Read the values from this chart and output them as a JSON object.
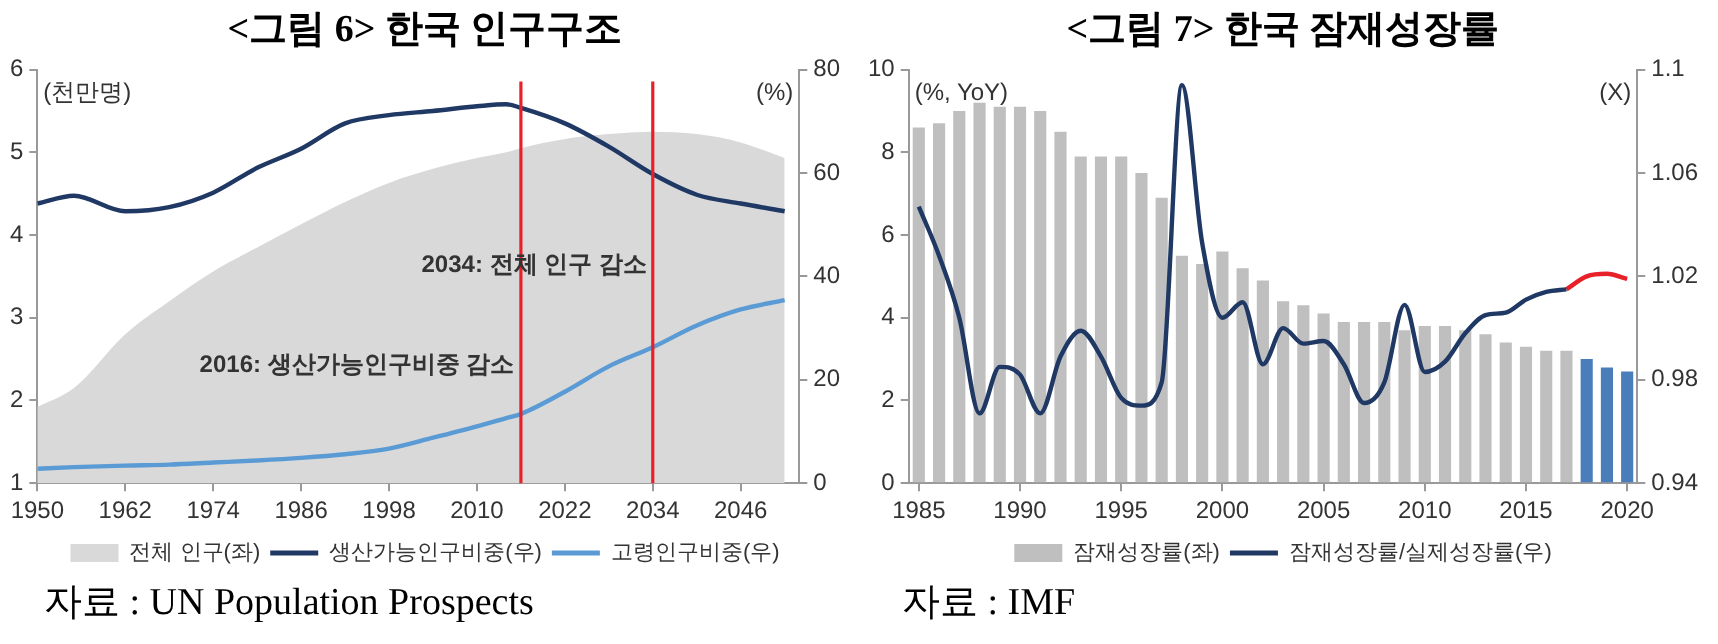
{
  "chart_data": [
    {
      "type": "area",
      "title": "<그림 6> 한국 인구구조",
      "ylabel": "(천만명)",
      "y2label": "(%)",
      "x": [
        1950,
        1955,
        1962,
        1968,
        1974,
        1980,
        1986,
        1992,
        1998,
        2004,
        2010,
        2014,
        2016,
        2022,
        2028,
        2034,
        2040,
        2046,
        2052
      ],
      "series": [
        {
          "name": "전체 인구(좌)",
          "color": "#d9d9d9",
          "values": [
            1.92,
            2.15,
            2.8,
            3.2,
            3.56,
            3.85,
            4.13,
            4.4,
            4.63,
            4.8,
            4.93,
            5.0,
            5.05,
            5.16,
            5.22,
            5.25,
            5.22,
            5.12,
            4.93
          ]
        },
        {
          "name": "생산가능인구비중(우)",
          "type": "line",
          "axis": "y2",
          "color": "#1f3864",
          "values": [
            54.1,
            55.6,
            52.6,
            53.4,
            56.2,
            61,
            64.7,
            69.6,
            71.2,
            72,
            72.9,
            73.3,
            72.6,
            69.6,
            65.1,
            59.8,
            55.8,
            54.1,
            52.6
          ]
        },
        {
          "name": "고령인구비중(우)",
          "type": "line",
          "axis": "y2",
          "color": "#5b9bd5",
          "values": [
            2.8,
            3.1,
            3.4,
            3.6,
            4.0,
            4.4,
            4.9,
            5.6,
            6.7,
            8.8,
            11,
            12.6,
            13.4,
            17.7,
            22.6,
            26.3,
            30.5,
            33.6,
            35.4
          ]
        }
      ],
      "xlim": [
        1950,
        2054
      ],
      "xticks": [
        1950,
        1962,
        1974,
        1986,
        1998,
        2010,
        2022,
        2034,
        2046
      ],
      "ylim": [
        1,
        6
      ],
      "yticks": [
        1,
        2,
        3,
        4,
        5,
        6
      ],
      "y2lim": [
        0,
        80
      ],
      "y2ticks": [
        0,
        20,
        40,
        60,
        80
      ],
      "ref_lines": [
        {
          "axis": "x",
          "value": 2016,
          "color": "#e8202a"
        },
        {
          "axis": "x",
          "value": 2034,
          "color": "#e8202a"
        }
      ],
      "annotations": [
        "2034: 전체 인구 감소",
        "2016: 생산가능인구비중 감소",
        "자료 : UN Population Prospects"
      ],
      "grid": false,
      "legend": "bottom"
    },
    {
      "type": "bar",
      "title": "<그림 7> 한국 잠재성장률",
      "ylabel": "(%, YoY)",
      "y2label": "(X)",
      "categories": [
        "1985",
        null,
        null,
        null,
        null,
        "1990",
        null,
        null,
        null,
        null,
        "1995",
        null,
        null,
        null,
        null,
        "2000",
        null,
        null,
        null,
        null,
        "2005",
        null,
        null,
        null,
        null,
        "2010",
        null,
        null,
        null,
        null,
        "2015",
        null,
        null,
        null,
        null,
        "2020"
      ],
      "series": [
        {
          "name": "잠재성장률(좌)",
          "color": "#bfbfbf",
          "colors": [
            "#bfbfbf",
            "#bfbfbf",
            "#bfbfbf",
            "#bfbfbf",
            "#bfbfbf",
            "#bfbfbf",
            "#bfbfbf",
            "#bfbfbf",
            "#bfbfbf",
            "#bfbfbf",
            "#bfbfbf",
            "#bfbfbf",
            "#bfbfbf",
            "#bfbfbf",
            "#bfbfbf",
            "#bfbfbf",
            "#bfbfbf",
            "#bfbfbf",
            "#bfbfbf",
            "#bfbfbf",
            "#bfbfbf",
            "#bfbfbf",
            "#bfbfbf",
            "#bfbfbf",
            "#bfbfbf",
            "#bfbfbf",
            "#bfbfbf",
            "#bfbfbf",
            "#bfbfbf",
            "#bfbfbf",
            "#bfbfbf",
            "#bfbfbf",
            "#bfbfbf",
            "#4a7ebb",
            "#4a7ebb",
            "#4a7ebb"
          ],
          "values": [
            8.6,
            8.7,
            9.0,
            9.2,
            9.1,
            9.1,
            9.0,
            8.5,
            7.9,
            7.9,
            7.9,
            7.5,
            6.9,
            5.5,
            5.3,
            5.6,
            5.2,
            4.9,
            4.4,
            4.3,
            4.1,
            3.9,
            3.9,
            3.9,
            3.7,
            3.8,
            3.8,
            3.7,
            3.6,
            3.4,
            3.3,
            3.2,
            3.2,
            3.0,
            2.8,
            2.7
          ]
        },
        {
          "name": "잠재성장률/실제성장률(우)",
          "type": "line",
          "axis": "y2",
          "color": "#1f3864",
          "values": [
            1.047,
            1.028,
            1.004,
            0.967,
            0.985,
            0.982,
            0.967,
            0.989,
            0.999,
            0.989,
            0.973,
            0.97,
            0.979,
            1.094,
            1.033,
            1.004,
            1.01,
            0.986,
            1.0,
            0.994,
            0.995,
            0.986,
            0.971,
            0.979,
            1.009,
            0.983,
            0.987,
            0.998,
            1.005,
            1.006,
            1.011,
            1.014,
            1.015,
            null,
            null,
            null
          ]
        },
        {
          "type": "line",
          "axis": "y2",
          "color": "#e8202a",
          "values": [
            null,
            null,
            null,
            null,
            null,
            null,
            null,
            null,
            null,
            null,
            null,
            null,
            null,
            null,
            null,
            null,
            null,
            null,
            null,
            null,
            null,
            null,
            null,
            null,
            null,
            null,
            null,
            null,
            null,
            null,
            null,
            null,
            1.015,
            1.02,
            1.021,
            1.019
          ]
        }
      ],
      "ylim": [
        0,
        10
      ],
      "yticks": [
        0,
        2,
        4,
        6,
        8,
        10
      ],
      "y2lim": [
        0.94,
        1.1
      ],
      "y2ticks": [
        0.94,
        0.98,
        1.02,
        1.06,
        1.1
      ],
      "annotations": [
        "자료 : IMF"
      ],
      "grid": false,
      "legend": "bottom"
    }
  ]
}
